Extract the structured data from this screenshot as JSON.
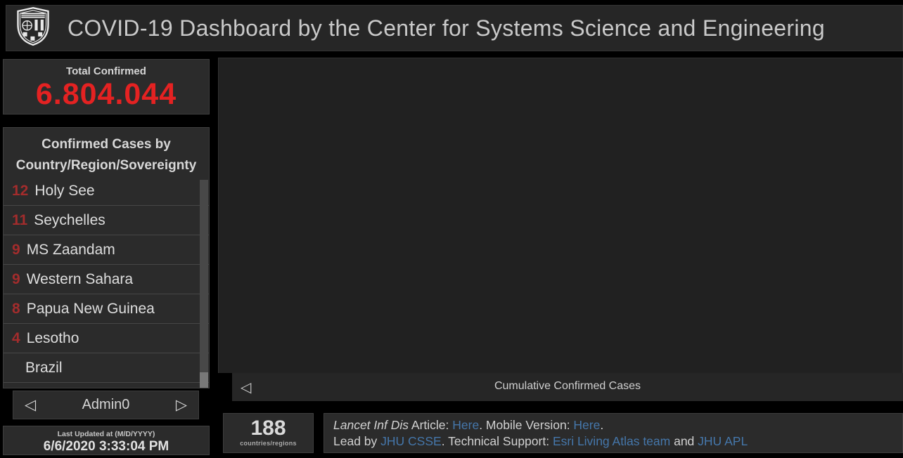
{
  "header": {
    "title": "COVID-19 Dashboard by the Center for Systems Science and Engineering",
    "logo": "jhu-shield-icon"
  },
  "total_confirmed": {
    "label": "Total Confirmed",
    "value": "6.804.044"
  },
  "country_list": {
    "title_line1": "Confirmed Cases by",
    "title_line2": "Country/Region/Sovereignty",
    "items": [
      {
        "count": "12",
        "name": "Holy See"
      },
      {
        "count": "11",
        "name": "Seychelles"
      },
      {
        "count": "9",
        "name": "MS Zaandam"
      },
      {
        "count": "9",
        "name": "Western Sahara"
      },
      {
        "count": "8",
        "name": "Papua New Guinea"
      },
      {
        "count": "4",
        "name": "Lesotho"
      },
      {
        "count": "",
        "name": "Brazil"
      }
    ]
  },
  "admin_nav": {
    "label": "Admin0",
    "prev_icon": "◁",
    "next_icon": "▷"
  },
  "last_updated": {
    "label": "Last Updated at (M/D/YYYY)",
    "value": "6/6/2020 3:33:04 PM"
  },
  "map": {
    "bottom_bar_label": "Cumulative Confirmed Cases",
    "collapse_icon": "◁"
  },
  "countries_panel": {
    "count": "188",
    "label": "countries/regions"
  },
  "info_panel": {
    "lines": [
      {
        "segments": [
          {
            "text": "Lancet Inf Dis",
            "style": "italic"
          },
          {
            "text": " Article: ",
            "style": "plain"
          },
          {
            "text": "Here",
            "style": "link"
          },
          {
            "text": ". Mobile Version: ",
            "style": "plain"
          },
          {
            "text": "Here",
            "style": "link"
          },
          {
            "text": ".",
            "style": "plain"
          }
        ]
      },
      {
        "segments": [
          {
            "text": "Lead by ",
            "style": "plain"
          },
          {
            "text": "JHU CSSE",
            "style": "link"
          },
          {
            "text": ". Technical Support: ",
            "style": "plain"
          },
          {
            "text": "Esri Living Atlas team",
            "style": "link"
          },
          {
            "text": " and ",
            "style": "plain"
          },
          {
            "text": "JHU APL",
            "style": "link"
          }
        ]
      }
    ]
  },
  "colors": {
    "total_red": "#e42222",
    "rank_red": "#a32c2c",
    "link_blue": "#4577ab",
    "panel_bg": "#2b2b2b",
    "map_bg": "#212121",
    "page_bg": "#000000"
  }
}
